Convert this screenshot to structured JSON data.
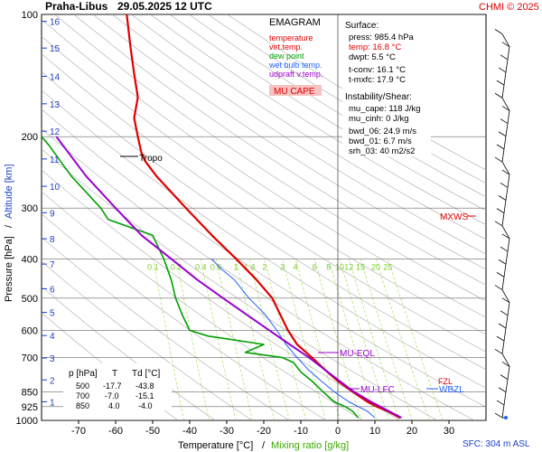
{
  "header": {
    "title_station": "Praha-Libus",
    "title_date": "29.05.2025 12 UTC",
    "copyright": "CHMI © 2025"
  },
  "legend": {
    "title": "EMAGRAM",
    "items": [
      {
        "label": "temperature",
        "color": "#e00000"
      },
      {
        "label": "virt.temp.",
        "color": "#e00000"
      },
      {
        "label": "dew point",
        "color": "#00a000"
      },
      {
        "label": "wet bulb temp.",
        "color": "#2060ff"
      },
      {
        "label": "udpraft v.temp.",
        "color": "#9900cc"
      }
    ],
    "mu_cape_label": "MU CAPE"
  },
  "stats": {
    "surface_title": "Surface:",
    "press": "press: 985.4 hPa",
    "temp": "temp: 16.8 °C",
    "dwpt": "dwpt: 5.5 °C",
    "tconv": "t-conv: 16.1 °C",
    "tmxfc": "t-mxfc: 17.9 °C",
    "instab_title": "Instability/Shear:",
    "mu_cape": "mu_cape: 118 J/kg",
    "mu_cinh": "mu_cinh: 0 J/kg",
    "bwd_06": "bwd_06: 24.9 m/s",
    "bwd_01": "bwd_01: 6.7 m/s",
    "srh_03": "srh_03: 40 m2/s2"
  },
  "table": {
    "headers": [
      "p [hPa]",
      "T",
      "Td [°C]"
    ],
    "rows": [
      [
        "500",
        "-17.7",
        "-43.8"
      ],
      [
        "700",
        "-7.0",
        "-15.1"
      ],
      [
        "850",
        "4.0",
        "-4.0"
      ]
    ]
  },
  "axes": {
    "xlabel_temp": "Temperature [°C]",
    "xlabel_sep": "/",
    "xlabel_mix": "Mixing ratio [g/kg]",
    "ylabel_p": "Pressure [hPa]",
    "ylabel_sep": "/",
    "ylabel_alt": "Altitude [km]",
    "sfc": "SFC: 304 m ASL"
  },
  "annotations": {
    "tropo": "Tropo",
    "mxws": "MXWS",
    "mu_eql": "MU-EQL",
    "mu_lfc": "MU-LFC",
    "wbzl": "WBZL",
    "fzl": "FZL"
  },
  "colors": {
    "temperature": "#e00000",
    "dewpoint": "#00a000",
    "wetbulb": "#2060ff",
    "parcel": "#9900cc",
    "mixing": "#a6e05a",
    "dry_adiabat": "#aaaaaa",
    "altitude": "#1a3ecc"
  },
  "chart_data": {
    "type": "line",
    "x_axis": "temperature_C",
    "y_axis": "pressure_hPa_log",
    "xlim": [
      -80,
      40
    ],
    "ylim": [
      1000,
      100
    ],
    "x_ticks": [
      -70,
      -60,
      -50,
      -40,
      -30,
      -20,
      -10,
      0,
      10,
      20,
      30
    ],
    "p_ticks": [
      100,
      200,
      300,
      400,
      500,
      600,
      700,
      850,
      925,
      1000
    ],
    "alt_ticks_km": [
      {
        "km": 1,
        "p": 900
      },
      {
        "km": 2,
        "p": 795
      },
      {
        "km": 3,
        "p": 702
      },
      {
        "km": 4,
        "p": 618
      },
      {
        "km": 5,
        "p": 542
      },
      {
        "km": 6,
        "p": 474
      },
      {
        "km": 7,
        "p": 412
      },
      {
        "km": 8,
        "p": 357
      },
      {
        "km": 9,
        "p": 308
      },
      {
        "km": 10,
        "p": 265
      },
      {
        "km": 11,
        "p": 227
      },
      {
        "km": 12,
        "p": 194
      },
      {
        "km": 13,
        "p": 166
      },
      {
        "km": 14,
        "p": 142
      },
      {
        "km": 15,
        "p": 121
      },
      {
        "km": 16,
        "p": 104
      }
    ],
    "mixing_ratio_labels": [
      "0.1",
      "0.2",
      "0.4",
      "0.6",
      "1",
      "1.4",
      "2",
      "3",
      "4",
      "6",
      "8",
      "10",
      "12",
      "15",
      "20",
      "25"
    ],
    "series": [
      {
        "name": "temperature",
        "points": [
          [
            985,
            16.8
          ],
          [
            950,
            13.5
          ],
          [
            925,
            10.5
          ],
          [
            900,
            8.0
          ],
          [
            875,
            6.0
          ],
          [
            850,
            4.0
          ],
          [
            800,
            0
          ],
          [
            750,
            -3.5
          ],
          [
            700,
            -7.0
          ],
          [
            650,
            -11
          ],
          [
            600,
            -13.5
          ],
          [
            550,
            -15.5
          ],
          [
            500,
            -17.7
          ],
          [
            450,
            -22
          ],
          [
            400,
            -27.5
          ],
          [
            350,
            -34
          ],
          [
            300,
            -41
          ],
          [
            250,
            -49
          ],
          [
            230,
            -52
          ],
          [
            220,
            -53
          ],
          [
            200,
            -54
          ],
          [
            180,
            -55
          ],
          [
            160,
            -54
          ],
          [
            140,
            -55
          ],
          [
            120,
            -56
          ],
          [
            100,
            -57
          ]
        ]
      },
      {
        "name": "dew point",
        "points": [
          [
            985,
            5.5
          ],
          [
            950,
            4.0
          ],
          [
            925,
            2.0
          ],
          [
            900,
            -1.0
          ],
          [
            875,
            -2.5
          ],
          [
            850,
            -4.0
          ],
          [
            800,
            -7
          ],
          [
            760,
            -10
          ],
          [
            720,
            -12
          ],
          [
            700,
            -15.1
          ],
          [
            680,
            -25
          ],
          [
            650,
            -20
          ],
          [
            620,
            -35
          ],
          [
            600,
            -40
          ],
          [
            550,
            -42
          ],
          [
            500,
            -43.8
          ],
          [
            450,
            -45
          ],
          [
            400,
            -47
          ],
          [
            350,
            -50
          ],
          [
            320,
            -62
          ],
          [
            300,
            -64
          ],
          [
            250,
            -72
          ],
          [
            210,
            -78
          ],
          [
            200,
            -80
          ]
        ]
      },
      {
        "name": "wet bulb temp.",
        "points": [
          [
            985,
            10
          ],
          [
            950,
            8
          ],
          [
            925,
            5.5
          ],
          [
            900,
            3
          ],
          [
            850,
            -1
          ],
          [
            800,
            -4.5
          ],
          [
            750,
            -8
          ],
          [
            700,
            -11
          ],
          [
            650,
            -14
          ],
          [
            600,
            -16.5
          ],
          [
            550,
            -19.5
          ],
          [
            500,
            -24
          ],
          [
            450,
            -28
          ],
          [
            420,
            -32
          ],
          [
            400,
            -34
          ]
        ]
      },
      {
        "name": "udpraft v.temp.",
        "points": [
          [
            985,
            17.2
          ],
          [
            900,
            9
          ],
          [
            850,
            4.3
          ],
          [
            800,
            0.5
          ],
          [
            750,
            -3.5
          ],
          [
            700,
            -7.8
          ],
          [
            650,
            -13
          ],
          [
            600,
            -18.5
          ],
          [
            550,
            -24.5
          ],
          [
            500,
            -31
          ],
          [
            450,
            -38
          ],
          [
            400,
            -45
          ],
          [
            350,
            -53
          ],
          [
            300,
            -60
          ],
          [
            250,
            -68
          ],
          [
            200,
            -76
          ]
        ]
      }
    ]
  }
}
